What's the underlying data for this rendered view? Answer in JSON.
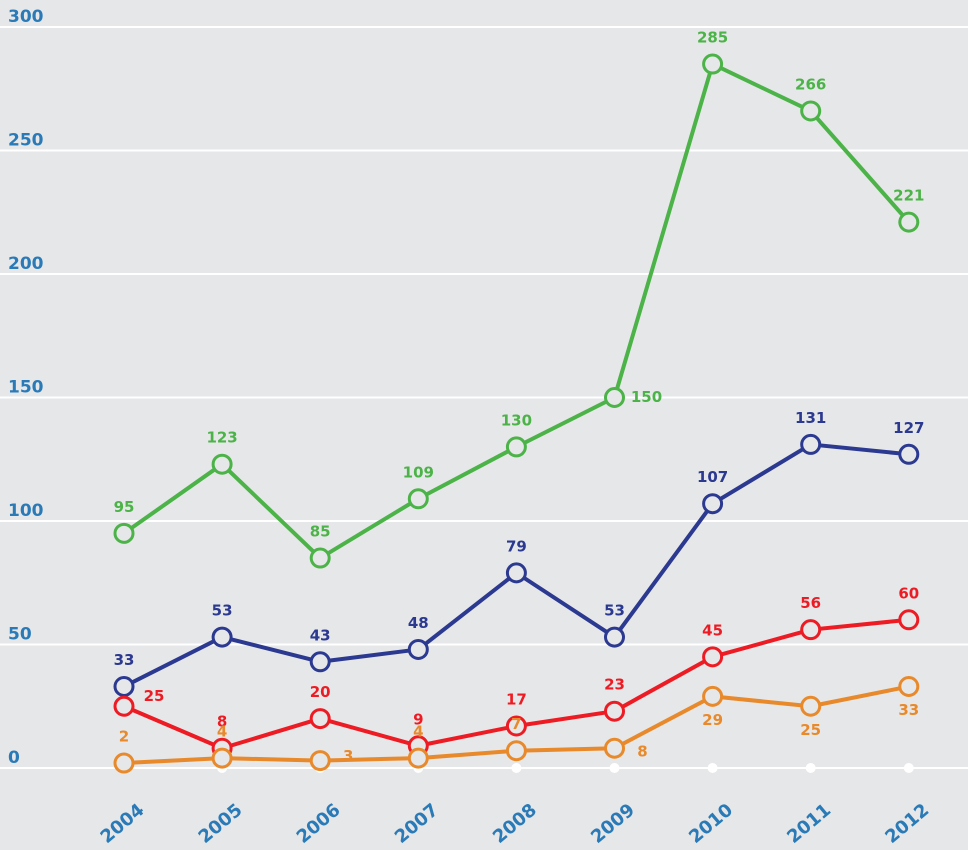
{
  "chart_data": {
    "type": "line",
    "categories": [
      "2004",
      "2005",
      "2006",
      "2007",
      "2008",
      "2009",
      "2010",
      "2011",
      "2012"
    ],
    "series": [
      {
        "color": "#4cb348",
        "values": [
          95,
          123,
          85,
          109,
          130,
          150,
          285,
          266,
          221
        ]
      },
      {
        "color": "#2b3990",
        "values": [
          33,
          53,
          43,
          48,
          79,
          53,
          107,
          131,
          127
        ]
      },
      {
        "color": "#ed1c24",
        "values": [
          25,
          8,
          20,
          9,
          17,
          23,
          45,
          56,
          60
        ]
      },
      {
        "color": "#e8892b",
        "values": [
          2,
          4,
          3,
          4,
          7,
          8,
          29,
          25,
          33
        ]
      }
    ],
    "ylim": [
      0,
      300
    ],
    "yticks": [
      0,
      50,
      100,
      150,
      200,
      250,
      300
    ],
    "grid": true
  }
}
